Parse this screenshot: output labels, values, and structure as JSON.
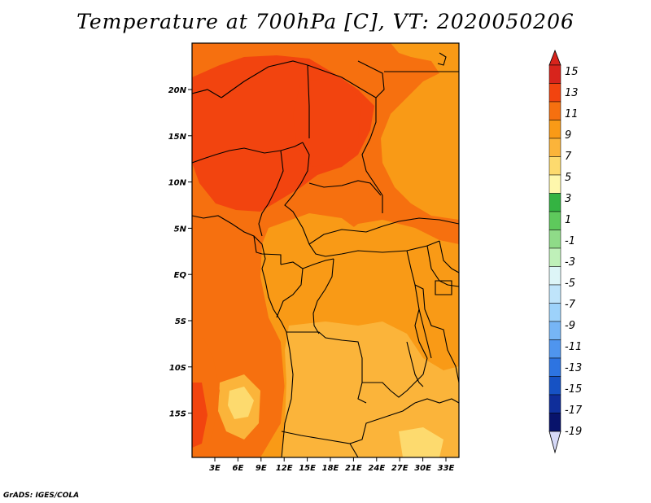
{
  "title": "Temperature at 700hPa [C], VT: 2020050206",
  "credit": "GrADS: IGES/COLA",
  "lon_ticks": [
    "3E",
    "6E",
    "9E",
    "12E",
    "15E",
    "18E",
    "21E",
    "24E",
    "27E",
    "30E",
    "33E"
  ],
  "lat_ticks": [
    "20N",
    "15N",
    "10N",
    "5N",
    "EQ",
    "5S",
    "10S",
    "15S"
  ],
  "colorbar": {
    "labels": [
      "15",
      "13",
      "11",
      "9",
      "7",
      "5",
      "3",
      "1",
      "-1",
      "-3",
      "-5",
      "-7",
      "-9",
      "-11",
      "-13",
      "-15",
      "-17",
      "-19"
    ],
    "colors": [
      "#d8241c",
      "#f2440f",
      "#f6700f",
      "#f99a16",
      "#fbb43a",
      "#fdda6e",
      "#fef7ac",
      "#34b342",
      "#5ec95c",
      "#8fdb88",
      "#bff0b9",
      "#ddf5f7",
      "#bfe4fa",
      "#9dd2fa",
      "#76b5f5",
      "#4f95ee",
      "#2d74e1",
      "#1652c4",
      "#0f2e9a",
      "#08136b"
    ],
    "top_color": "#d8241c",
    "bottom_color": "#d6d9f7"
  },
  "map_colors": {
    "hot": "#f2440f",
    "warm": "#f6700f",
    "mild": "#f99a16",
    "cool": "#fbb43a",
    "cooler": "#fdda6e"
  }
}
